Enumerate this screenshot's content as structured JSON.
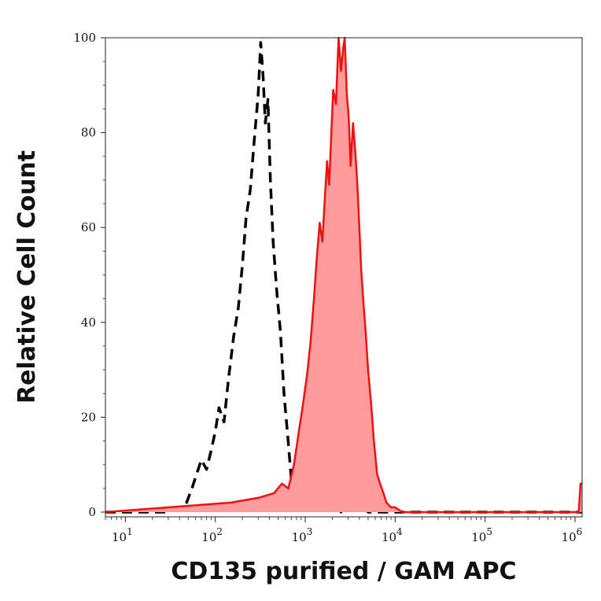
{
  "chart_data": {
    "type": "area",
    "xlabel": "CD135 purified / GAM APC",
    "ylabel": "Relative Cell Count",
    "xscale": "log",
    "xlim": [
      6,
      1200000
    ],
    "ylim": [
      -1,
      100
    ],
    "x_ticks": [
      {
        "value": 10,
        "base": "10",
        "exp": "1"
      },
      {
        "value": 100,
        "base": "10",
        "exp": "2"
      },
      {
        "value": 1000,
        "base": "10",
        "exp": "3"
      },
      {
        "value": 10000,
        "base": "10",
        "exp": "4"
      },
      {
        "value": 100000,
        "base": "10",
        "exp": "5"
      },
      {
        "value": 1000000,
        "base": "10",
        "exp": "6"
      }
    ],
    "y_ticks": [
      {
        "value": 0,
        "label": "0"
      },
      {
        "value": 20,
        "label": "20"
      },
      {
        "value": 40,
        "label": "40"
      },
      {
        "value": 60,
        "label": "60"
      },
      {
        "value": 80,
        "label": "80"
      },
      {
        "value": 100,
        "label": "100"
      }
    ],
    "grid": false,
    "legend": "none",
    "series": [
      {
        "style": "dashed line, no fill",
        "color": "#000000",
        "x": [
          6,
          30,
          40,
          48,
          55,
          62,
          70,
          80,
          90,
          100,
          110,
          125,
          140,
          160,
          180,
          200,
          220,
          245,
          270,
          300,
          320,
          340,
          360,
          385,
          410,
          440,
          480,
          530,
          580,
          640,
          700,
          800,
          1000,
          1200,
          1500,
          2000,
          2500,
          3000,
          5000,
          1200000
        ],
        "y": [
          0,
          0,
          1,
          2,
          5,
          8,
          11,
          9,
          13,
          17,
          22,
          19,
          28,
          37,
          43,
          52,
          62,
          68,
          78,
          88,
          99,
          92,
          82,
          87,
          70,
          57,
          47,
          38,
          25,
          16,
          7,
          2,
          0,
          3,
          0,
          2,
          0,
          4,
          0,
          0
        ]
      },
      {
        "style": "solid line, filled",
        "color": "#ee1111",
        "fill": "#ff9b9b",
        "x": [
          6,
          150,
          300,
          450,
          550,
          650,
          750,
          850,
          950,
          1050,
          1150,
          1250,
          1350,
          1450,
          1550,
          1650,
          1750,
          1850,
          1950,
          2050,
          2200,
          2350,
          2500,
          2650,
          2750,
          2900,
          3050,
          3200,
          3400,
          3600,
          3800,
          4000,
          4200,
          4400,
          4700,
          5000,
          5400,
          5800,
          6300,
          6800,
          7400,
          8000,
          9000,
          10000,
          12000,
          15000,
          1100000,
          1150000,
          1200000
        ],
        "y": [
          0,
          2,
          3,
          4,
          6,
          5,
          10,
          17,
          23,
          29,
          36,
          45,
          54,
          61,
          57,
          66,
          74,
          69,
          80,
          89,
          86,
          100,
          93,
          98,
          100,
          88,
          83,
          73,
          82,
          76,
          69,
          60,
          51,
          45,
          38,
          30,
          23,
          15,
          8,
          6,
          4,
          2,
          1,
          1,
          0,
          0,
          0,
          6,
          6
        ]
      }
    ]
  }
}
